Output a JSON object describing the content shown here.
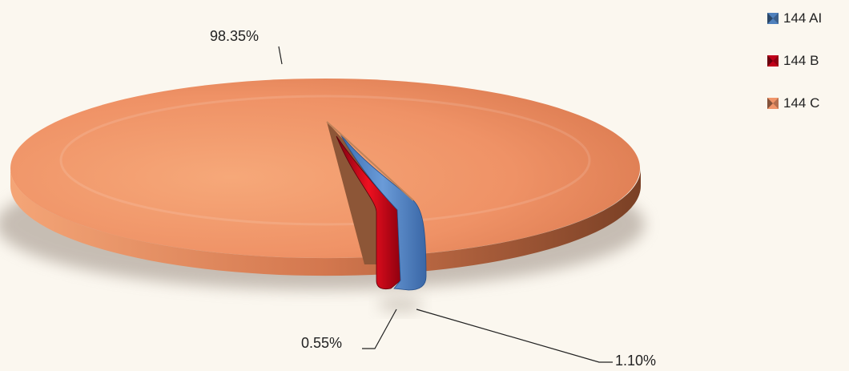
{
  "chart_data": {
    "type": "pie",
    "title": "",
    "slices": [
      {
        "name": "144 AI",
        "value": 1.1,
        "label": "1.10%",
        "color": "#4f81bd"
      },
      {
        "name": "144 B",
        "value": 0.55,
        "label": "0.55%",
        "color": "#c0001a"
      },
      {
        "name": "144 C",
        "value": 98.35,
        "label": "98.35%",
        "color": "#f0956a"
      }
    ],
    "legend_position": "top-right",
    "style": "3d-exploded"
  }
}
